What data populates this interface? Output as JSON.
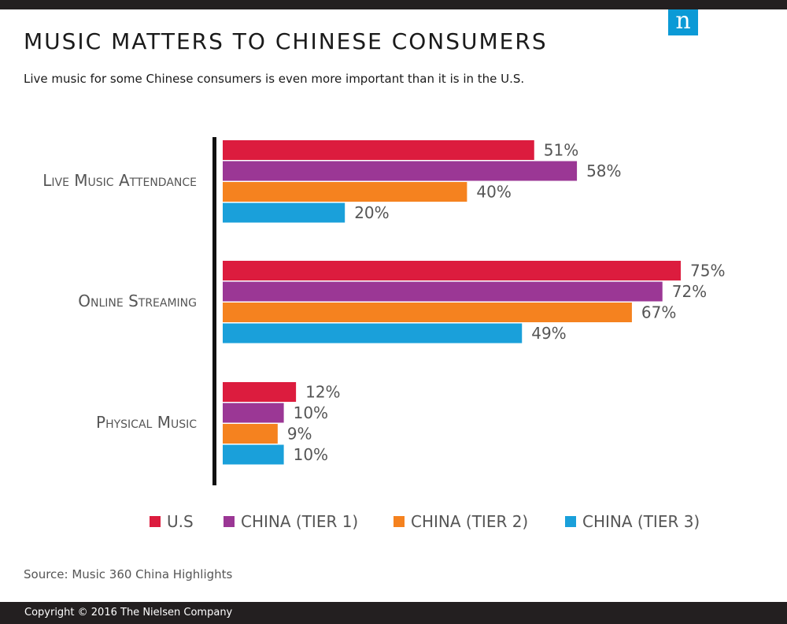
{
  "header": {
    "title": "MUSIC MATTERS TO CHINESE CONSUMERS",
    "subtitle": "Live music for some Chinese consumers is even more important than it is in the U.S.",
    "logo_letter": "n"
  },
  "footer": {
    "source": "Source: Music 360 China Highlights",
    "copyright": "Copyright © 2016 The Nielsen Company"
  },
  "chart_data": {
    "type": "bar",
    "orientation": "horizontal",
    "categories": [
      "Live Music Attendance",
      "Online Streaming",
      "Physical Music"
    ],
    "series": [
      {
        "name": "U.S",
        "color": "#dc1c3e",
        "values": [
          51,
          75,
          12
        ]
      },
      {
        "name": "CHINA (TIER 1)",
        "color": "#9b3795",
        "values": [
          58,
          72,
          10
        ]
      },
      {
        "name": "CHINA (TIER 2)",
        "color": "#f5821f",
        "values": [
          40,
          67,
          9
        ]
      },
      {
        "name": "CHINA (TIER 3)",
        "color": "#1aa0da",
        "values": [
          20,
          49,
          10
        ]
      }
    ],
    "value_suffix": "%",
    "xlim": [
      0,
      100
    ],
    "legend_position": "bottom",
    "grid": false
  }
}
